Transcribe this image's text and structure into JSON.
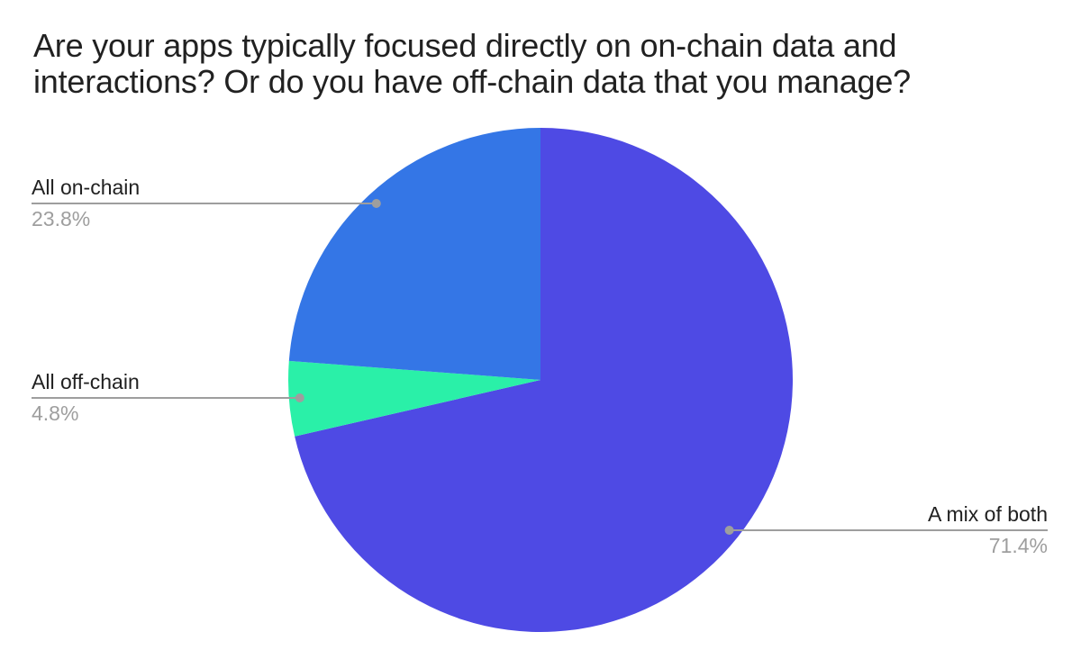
{
  "chart_data": {
    "type": "pie",
    "title": "Are your apps typically focused directly on on-chain data and interactions? Or do you have off-chain data that you manage?",
    "title_lines": [
      "Are your apps typically focused directly on on-chain data and",
      "interactions? Or do you have off-chain data that you manage?"
    ],
    "start_angle_deg": 0,
    "direction": "clockwise",
    "legend_position": "none",
    "background_color": "#ffffff",
    "title_color": "#212121",
    "label_text_color": "#212121",
    "annotation_color": "#9e9e9e",
    "slices": [
      {
        "label": "A mix of both",
        "value_pct": 71.4,
        "display_pct": "71.4%",
        "color": "#4E4AE4",
        "label_side": "right"
      },
      {
        "label": "All off-chain",
        "value_pct": 4.8,
        "display_pct": "4.8%",
        "color": "#2AF0A8",
        "label_side": "left"
      },
      {
        "label": "All on-chain",
        "value_pct": 23.8,
        "display_pct": "23.8%",
        "color": "#3476E6",
        "label_side": "left"
      }
    ]
  }
}
